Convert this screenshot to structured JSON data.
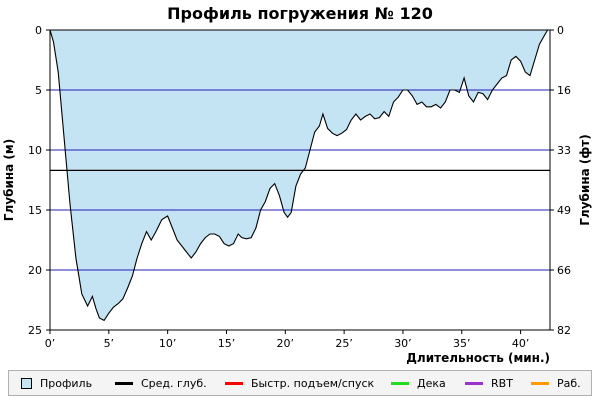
{
  "chart_data": {
    "type": "area",
    "title": "Профиль погружения № 120",
    "xlabel": "Длительность (мин.)",
    "ylabel_left": "Глубина (м)",
    "ylabel_right": "Глубина (фт)",
    "xlim": [
      0,
      42.5
    ],
    "ylim": [
      0,
      25
    ],
    "y_inverted": true,
    "grid": true,
    "x_ticks": [
      0,
      5,
      10,
      15,
      20,
      25,
      30,
      35,
      40
    ],
    "x_tick_labels": [
      "0’",
      "5’",
      "10’",
      "15’",
      "20’",
      "25’",
      "30’",
      "35’",
      "40’"
    ],
    "y_ticks_left": [
      0,
      5,
      10,
      15,
      20,
      25
    ],
    "y_tick_labels_left": [
      "0",
      "5",
      "10",
      "15",
      "20",
      "25"
    ],
    "y_tick_labels_right": [
      "0",
      "16",
      "33",
      "49",
      "66",
      "82"
    ],
    "average_depth": 11.7,
    "legend_placement": "bottom",
    "colors": {
      "profile_fill": "#c4e3f3",
      "grid": "#1f1fb4",
      "avg": "#000000",
      "ascent": "#ff0000",
      "deco": "#22dd22",
      "rbt": "#9933cc",
      "work": "#ff9900"
    },
    "series": [
      {
        "name": "Профиль",
        "x": [
          0,
          0.3,
          0.7,
          1.2,
          1.7,
          2.2,
          2.7,
          3.2,
          3.6,
          3.9,
          4.2,
          4.6,
          5.0,
          5.4,
          5.8,
          6.2,
          6.6,
          7.0,
          7.4,
          7.8,
          8.2,
          8.6,
          9.0,
          9.5,
          10.0,
          10.4,
          10.8,
          11.2,
          11.6,
          12.0,
          12.4,
          12.8,
          13.2,
          13.6,
          14.0,
          14.4,
          14.8,
          15.2,
          15.6,
          16.0,
          16.3,
          16.7,
          17.1,
          17.5,
          17.9,
          18.3,
          18.7,
          19.1,
          19.5,
          19.9,
          20.2,
          20.5,
          20.9,
          21.3,
          21.7,
          22.1,
          22.5,
          22.9,
          23.2,
          23.6,
          24.0,
          24.4,
          24.8,
          25.2,
          25.6,
          26.0,
          26.4,
          26.8,
          27.2,
          27.6,
          28.0,
          28.4,
          28.8,
          29.2,
          29.6,
          30.0,
          30.4,
          30.8,
          31.2,
          31.6,
          32.0,
          32.4,
          32.8,
          33.2,
          33.6,
          34.0,
          34.4,
          34.8,
          35.2,
          35.6,
          36.0,
          36.4,
          36.8,
          37.2,
          37.6,
          38.0,
          38.4,
          38.8,
          39.2,
          39.6,
          40.0,
          40.4,
          40.8,
          41.2,
          41.6,
          42.0,
          42.3
        ],
        "values": [
          0,
          1.0,
          3.5,
          9.0,
          14.5,
          19.0,
          22.0,
          23.0,
          22.2,
          23.2,
          24.0,
          24.2,
          23.6,
          23.1,
          22.8,
          22.4,
          21.5,
          20.5,
          19.0,
          17.8,
          16.8,
          17.5,
          16.8,
          15.8,
          15.5,
          16.5,
          17.5,
          18.0,
          18.5,
          19.0,
          18.5,
          17.8,
          17.3,
          17.0,
          17.0,
          17.2,
          17.8,
          18.0,
          17.8,
          17.0,
          17.3,
          17.4,
          17.3,
          16.5,
          15.0,
          14.3,
          13.2,
          12.8,
          13.8,
          15.2,
          15.6,
          15.2,
          13.0,
          12.0,
          11.5,
          10.0,
          8.5,
          8.0,
          7.0,
          8.2,
          8.6,
          8.8,
          8.6,
          8.3,
          7.5,
          7.0,
          7.5,
          7.2,
          7.0,
          7.4,
          7.3,
          6.8,
          7.2,
          6.0,
          5.6,
          5.0,
          5.0,
          5.5,
          6.2,
          6.0,
          6.4,
          6.4,
          6.2,
          6.5,
          6.0,
          5.0,
          5.0,
          5.2,
          4.0,
          5.5,
          6.0,
          5.2,
          5.3,
          5.8,
          5.0,
          4.5,
          4.0,
          3.8,
          2.5,
          2.2,
          2.6,
          3.5,
          3.8,
          2.5,
          1.2,
          0.5,
          0
        ]
      }
    ],
    "legend": [
      {
        "label": "Профиль",
        "kind": "box",
        "color": "#c4e3f3"
      },
      {
        "label": "Сред. глуб.",
        "kind": "line",
        "color": "#000000"
      },
      {
        "label": "Быстр. подъем/спуск",
        "kind": "line",
        "color": "#ff0000"
      },
      {
        "label": "Дека",
        "kind": "line",
        "color": "#22dd22"
      },
      {
        "label": "RBT",
        "kind": "line",
        "color": "#9933cc"
      },
      {
        "label": "Раб.",
        "kind": "line",
        "color": "#ff9900"
      }
    ]
  }
}
